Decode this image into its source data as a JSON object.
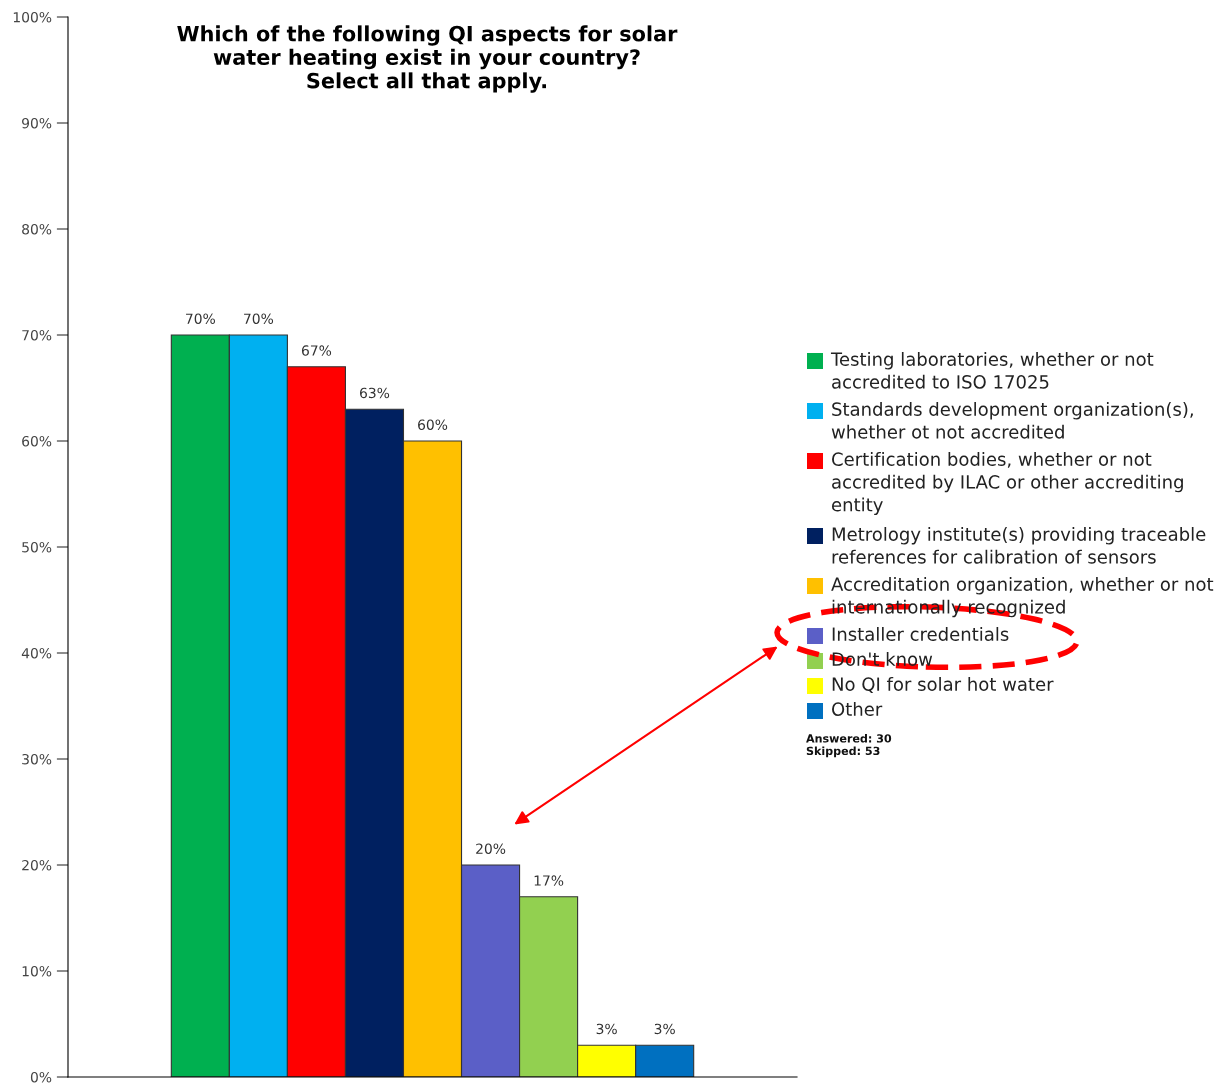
{
  "chart_data": {
    "type": "bar",
    "title": "Which of the following QI aspects for solar\nwater heating exist in your country?\nSelect all that apply.",
    "categories": [
      null
    ],
    "series": [
      {
        "name": "Testing laboratories, whether or not\naccredited to ISO 17025",
        "color": "#00b050",
        "values": [
          70
        ],
        "value_labels": [
          "70%"
        ]
      },
      {
        "name": "Standards development organization(s),\nwhether ot not accredited",
        "color": "#00b0f0",
        "values": [
          70
        ],
        "value_labels": [
          "70%"
        ]
      },
      {
        "name": "Certification bodies, whether or not\naccredited by ILAC or other accrediting\nentity",
        "color": "#ff0000",
        "values": [
          67
        ],
        "value_labels": [
          "67%"
        ]
      },
      {
        "name": "Metrology institute(s) providing traceable\nreferences for calibration of sensors",
        "color": "#002060",
        "values": [
          63
        ],
        "value_labels": [
          "63%"
        ]
      },
      {
        "name": "Accreditation organization, whether or not\ninternationally recognized",
        "color": "#ffc000",
        "values": [
          60
        ],
        "value_labels": [
          "60%"
        ]
      },
      {
        "name": "Installer credentials",
        "color": "#5b5fc7",
        "values": [
          20
        ],
        "value_labels": [
          "20%"
        ]
      },
      {
        "name": "Don't know",
        "color": "#92d050",
        "values": [
          17
        ],
        "value_labels": [
          "17%"
        ]
      },
      {
        "name": "No QI for solar hot water",
        "color": "#ffff00",
        "values": [
          3
        ],
        "value_labels": [
          "3%"
        ]
      },
      {
        "name": "Other",
        "color": "#0070c0",
        "values": [
          3
        ],
        "value_labels": [
          "3%"
        ]
      }
    ],
    "ylim": [
      0,
      100
    ],
    "yticks": [
      {
        "value": 0,
        "label": "0%"
      },
      {
        "value": 10,
        "label": "10%"
      },
      {
        "value": 20,
        "label": "20%"
      },
      {
        "value": 30,
        "label": "30%"
      },
      {
        "value": 40,
        "label": "40%"
      },
      {
        "value": 50,
        "label": "50%"
      },
      {
        "value": 60,
        "label": "60%"
      },
      {
        "value": 70,
        "label": "70%"
      },
      {
        "value": 80,
        "label": "80%"
      },
      {
        "value": 90,
        "label": "90%"
      },
      {
        "value": 100,
        "label": "100%"
      }
    ],
    "grid": false,
    "legend": "right",
    "annotations": [
      "Answered: 30\nSkipped: 53"
    ]
  }
}
